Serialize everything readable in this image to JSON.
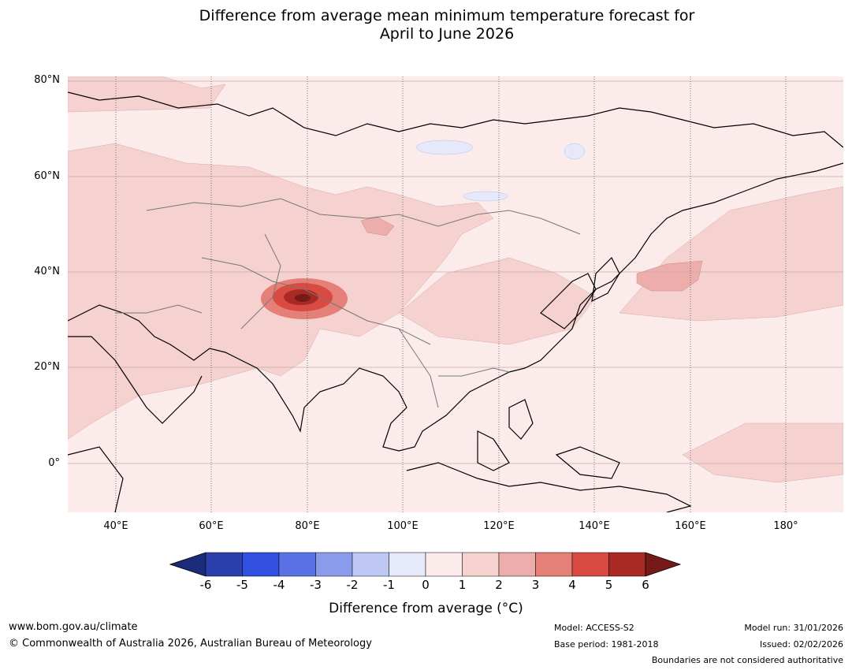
{
  "title": {
    "line1": "Difference from average mean minimum temperature forecast for",
    "line2": "April to June 2026"
  },
  "map": {
    "latitude_labels": [
      "80°N",
      "60°N",
      "40°N",
      "20°N",
      "0°"
    ],
    "longitude_labels": [
      "40°E",
      "60°E",
      "80°E",
      "100°E",
      "120°E",
      "140°E",
      "160°E",
      "180°"
    ]
  },
  "colorbar": {
    "ticks": [
      "-6",
      "-5",
      "-4",
      "-3",
      "-2",
      "-1",
      "0",
      "1",
      "2",
      "3",
      "4",
      "5",
      "6"
    ],
    "colors": [
      "#1c2a7a",
      "#2a3eae",
      "#3150df",
      "#5b72e6",
      "#8a9bec",
      "#bfc7f4",
      "#e6e9fa",
      "#fbeceb",
      "#f5d2d0",
      "#edadab",
      "#e58078",
      "#d84a42",
      "#a92a24",
      "#751a18"
    ],
    "label": "Difference from average (°C)"
  },
  "footer": {
    "url": "www.bom.gov.au/climate",
    "copyright": "© Commonwealth of Australia 2026, Australian Bureau of Meteorology",
    "model": "Model: ACCESS-S2",
    "base_period": "Base period: 1981-2018",
    "model_run": "Model run: 31/01/2026",
    "issued": "Issued: 02/02/2026",
    "disclaimer": "Boundaries are not considered authoritative"
  }
}
